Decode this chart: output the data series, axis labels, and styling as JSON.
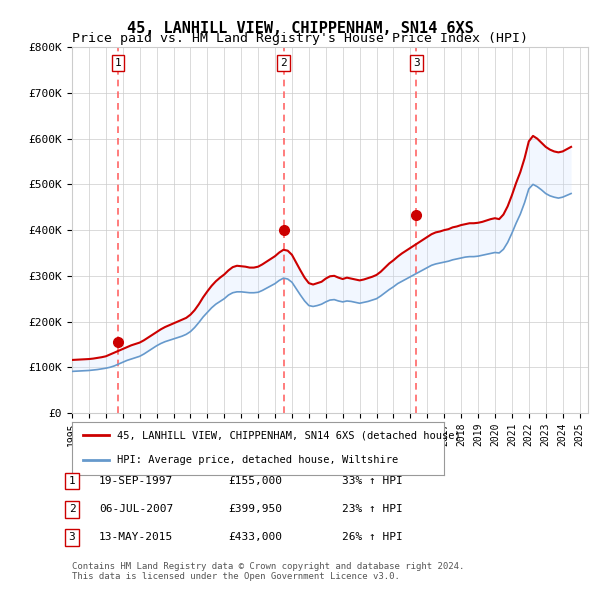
{
  "title": "45, LANHILL VIEW, CHIPPENHAM, SN14 6XS",
  "subtitle": "Price paid vs. HM Land Registry's House Price Index (HPI)",
  "title_fontsize": 11,
  "subtitle_fontsize": 9.5,
  "ylabel_ticks": [
    "£0",
    "£100K",
    "£200K",
    "£300K",
    "£400K",
    "£500K",
    "£600K",
    "£700K",
    "£800K"
  ],
  "ytick_values": [
    0,
    100000,
    200000,
    300000,
    400000,
    500000,
    600000,
    700000,
    800000
  ],
  "ylim": [
    0,
    800000
  ],
  "xlim_start": 1995.0,
  "xlim_end": 2025.5,
  "xticks": [
    1995,
    1996,
    1997,
    1998,
    1999,
    2000,
    2001,
    2002,
    2003,
    2004,
    2005,
    2006,
    2007,
    2008,
    2009,
    2010,
    2011,
    2012,
    2013,
    2014,
    2015,
    2016,
    2017,
    2018,
    2019,
    2020,
    2021,
    2022,
    2023,
    2024,
    2025
  ],
  "red_line_color": "#cc0000",
  "blue_line_color": "#6699cc",
  "red_fill_color": "#ffcccc",
  "blue_fill_color": "#cce0ff",
  "marker_color": "#cc0000",
  "vline_color": "#ff6666",
  "grid_color": "#cccccc",
  "bg_color": "#ffffff",
  "purchases": [
    {
      "date_num": 1997.72,
      "price": 155000,
      "label": "1"
    },
    {
      "date_num": 2007.51,
      "price": 399950,
      "label": "2"
    },
    {
      "date_num": 2015.36,
      "price": 433000,
      "label": "3"
    }
  ],
  "legend_items": [
    {
      "label": "45, LANHILL VIEW, CHIPPENHAM, SN14 6XS (detached house)",
      "color": "#cc0000"
    },
    {
      "label": "HPI: Average price, detached house, Wiltshire",
      "color": "#6699cc"
    }
  ],
  "table_rows": [
    {
      "num": "1",
      "date": "19-SEP-1997",
      "price": "£155,000",
      "change": "33% ↑ HPI"
    },
    {
      "num": "2",
      "date": "06-JUL-2007",
      "price": "£399,950",
      "change": "23% ↑ HPI"
    },
    {
      "num": "3",
      "date": "13-MAY-2015",
      "price": "£433,000",
      "change": "26% ↑ HPI"
    }
  ],
  "footnote": "Contains HM Land Registry data © Crown copyright and database right 2024.\nThis data is licensed under the Open Government Licence v3.0.",
  "hpi_data": {
    "years": [
      1995.0,
      1995.25,
      1995.5,
      1995.75,
      1996.0,
      1996.25,
      1996.5,
      1996.75,
      1997.0,
      1997.25,
      1997.5,
      1997.75,
      1998.0,
      1998.25,
      1998.5,
      1998.75,
      1999.0,
      1999.25,
      1999.5,
      1999.75,
      2000.0,
      2000.25,
      2000.5,
      2000.75,
      2001.0,
      2001.25,
      2001.5,
      2001.75,
      2002.0,
      2002.25,
      2002.5,
      2002.75,
      2003.0,
      2003.25,
      2003.5,
      2003.75,
      2004.0,
      2004.25,
      2004.5,
      2004.75,
      2005.0,
      2005.25,
      2005.5,
      2005.75,
      2006.0,
      2006.25,
      2006.5,
      2006.75,
      2007.0,
      2007.25,
      2007.5,
      2007.75,
      2008.0,
      2008.25,
      2008.5,
      2008.75,
      2009.0,
      2009.25,
      2009.5,
      2009.75,
      2010.0,
      2010.25,
      2010.5,
      2010.75,
      2011.0,
      2011.25,
      2011.5,
      2011.75,
      2012.0,
      2012.25,
      2012.5,
      2012.75,
      2013.0,
      2013.25,
      2013.5,
      2013.75,
      2014.0,
      2014.25,
      2014.5,
      2014.75,
      2015.0,
      2015.25,
      2015.5,
      2015.75,
      2016.0,
      2016.25,
      2016.5,
      2016.75,
      2017.0,
      2017.25,
      2017.5,
      2017.75,
      2018.0,
      2018.25,
      2018.5,
      2018.75,
      2019.0,
      2019.25,
      2019.5,
      2019.75,
      2020.0,
      2020.25,
      2020.5,
      2020.75,
      2021.0,
      2021.25,
      2021.5,
      2021.75,
      2022.0,
      2022.25,
      2022.5,
      2022.75,
      2023.0,
      2023.25,
      2023.5,
      2023.75,
      2024.0,
      2024.25,
      2024.5
    ],
    "hpi_values": [
      91000,
      91500,
      92000,
      92500,
      93000,
      94000,
      95000,
      96500,
      98000,
      100000,
      103000,
      107000,
      111000,
      115000,
      118000,
      121000,
      124000,
      129000,
      135000,
      141000,
      147000,
      152000,
      156000,
      159000,
      162000,
      165000,
      168000,
      172000,
      178000,
      187000,
      198000,
      210000,
      220000,
      230000,
      238000,
      244000,
      250000,
      258000,
      263000,
      265000,
      265000,
      264000,
      263000,
      263000,
      264000,
      268000,
      273000,
      278000,
      283000,
      290000,
      295000,
      293000,
      286000,
      272000,
      258000,
      245000,
      235000,
      233000,
      235000,
      238000,
      243000,
      247000,
      248000,
      245000,
      243000,
      245000,
      244000,
      242000,
      240000,
      242000,
      244000,
      247000,
      250000,
      256000,
      263000,
      270000,
      276000,
      283000,
      288000,
      293000,
      298000,
      303000,
      308000,
      313000,
      318000,
      323000,
      326000,
      328000,
      330000,
      332000,
      335000,
      337000,
      339000,
      341000,
      342000,
      342000,
      343000,
      345000,
      347000,
      349000,
      351000,
      350000,
      358000,
      373000,
      393000,
      415000,
      435000,
      460000,
      490000,
      500000,
      495000,
      488000,
      480000,
      475000,
      472000,
      470000,
      472000,
      476000,
      480000
    ],
    "red_values": [
      116000,
      116500,
      117000,
      117500,
      118000,
      119000,
      120500,
      122000,
      124000,
      128000,
      132000,
      136000,
      140000,
      144000,
      148000,
      151000,
      154000,
      159000,
      165000,
      171000,
      177000,
      183000,
      188000,
      192000,
      196000,
      200000,
      204000,
      208000,
      215000,
      225000,
      238000,
      253000,
      266000,
      278000,
      288000,
      296000,
      303000,
      312000,
      319000,
      322000,
      321000,
      320000,
      318000,
      318000,
      320000,
      325000,
      331000,
      337000,
      343000,
      351000,
      357000,
      355000,
      346000,
      329000,
      312000,
      296000,
      284000,
      281000,
      284000,
      287000,
      294000,
      299000,
      300000,
      296000,
      293000,
      296000,
      294000,
      292000,
      290000,
      292000,
      295000,
      298000,
      302000,
      309000,
      318000,
      327000,
      334000,
      342000,
      349000,
      355000,
      361000,
      367000,
      373000,
      379000,
      385000,
      391000,
      395000,
      397000,
      400000,
      402000,
      406000,
      408000,
      411000,
      413000,
      415000,
      415000,
      416000,
      418000,
      421000,
      424000,
      426000,
      424000,
      434000,
      452000,
      476000,
      503000,
      527000,
      557000,
      594000,
      606000,
      600000,
      591000,
      582000,
      576000,
      572000,
      570000,
      572000,
      577000,
      582000
    ]
  }
}
